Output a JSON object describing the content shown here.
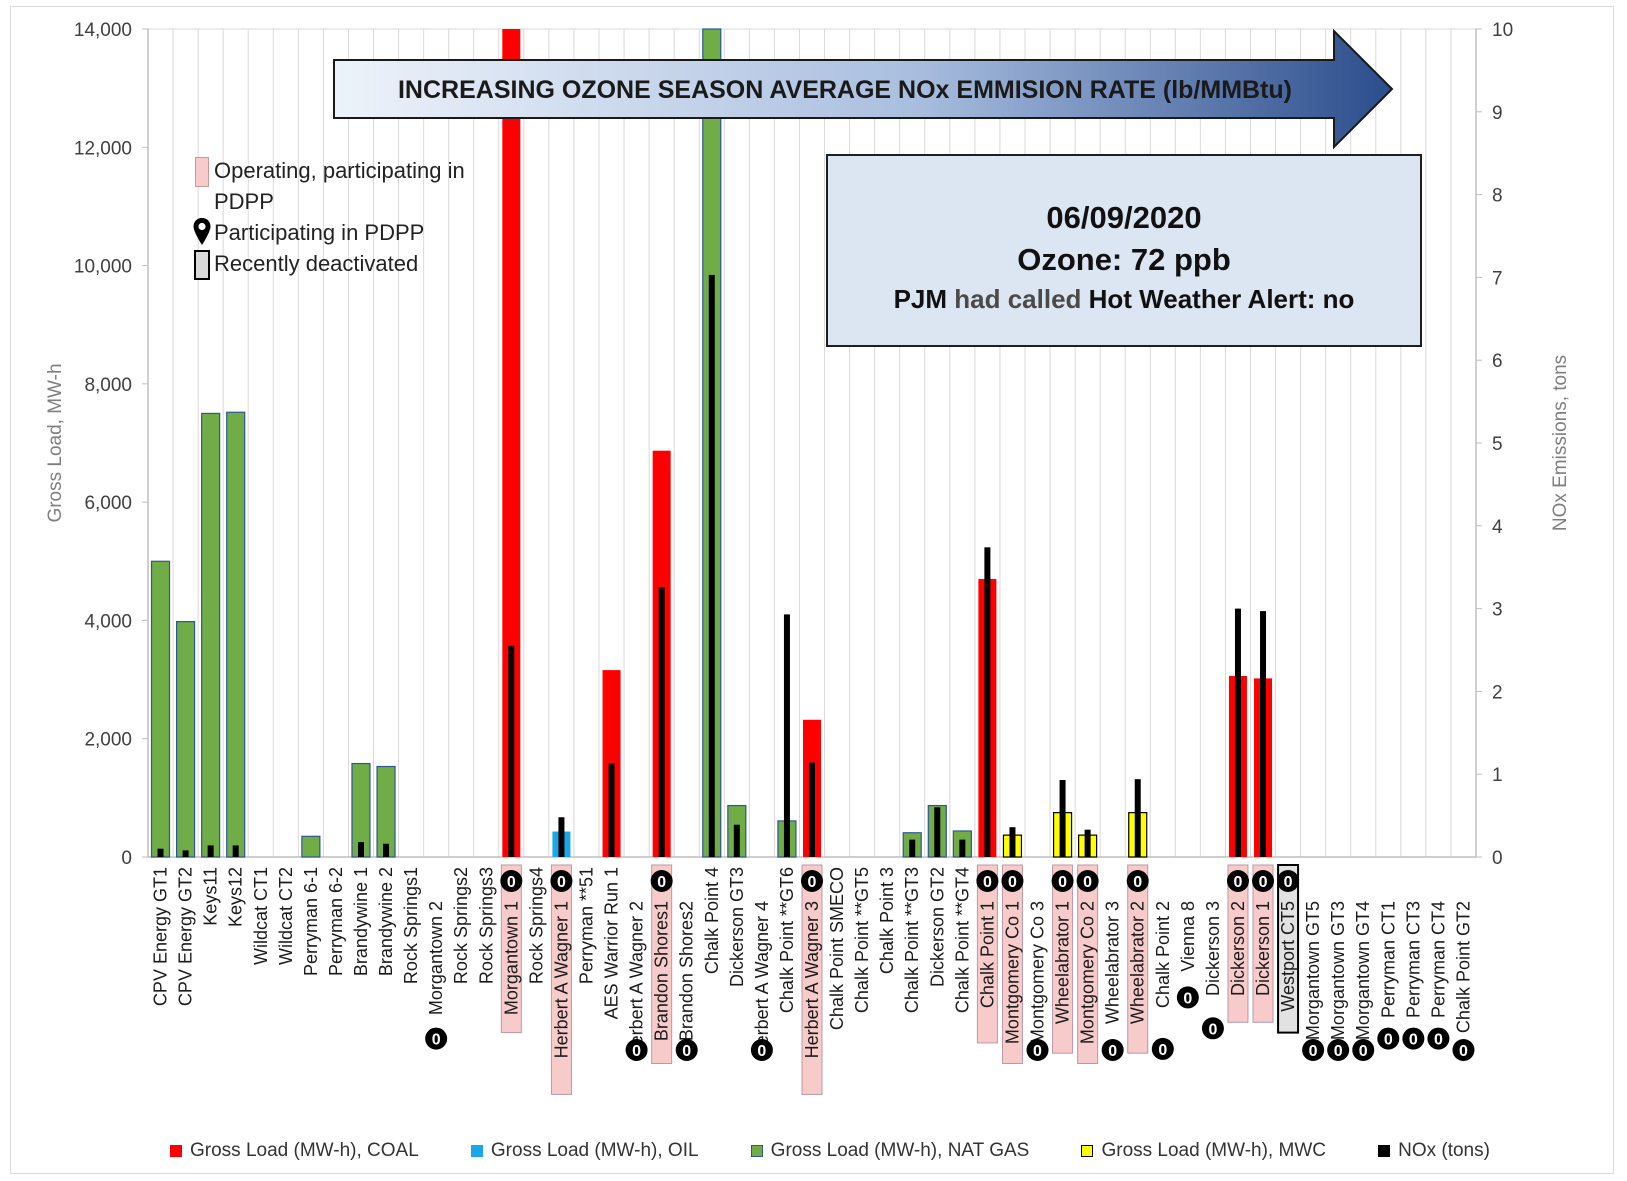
{
  "chart_data": {
    "type": "bar",
    "banner": "INCREASING OZONE SEASON AVERAGE NOx EMMISION RATE (lb/MMBtu)",
    "ylabel": "Gross Load, MW-h",
    "y2label": "NOx Emissions, tons",
    "ylim": [
      0,
      14000
    ],
    "y2lim": [
      0,
      10
    ],
    "yticks": [
      "0",
      "2,000",
      "4,000",
      "6,000",
      "8,000",
      "10,000",
      "12,000",
      "14,000"
    ],
    "y2ticks": [
      "0",
      "1",
      "2",
      "3",
      "4",
      "5",
      "6",
      "7",
      "8",
      "9",
      "10"
    ],
    "grid": true,
    "legend_position": "bottom",
    "categories": [
      "CPV Energy GT1",
      "CPV Energy GT2",
      "Keys11",
      "Keys12",
      "Wildcat CT1",
      "Wildcat CT2",
      "Perryman 6-1",
      "Perryman 6-2",
      "Brandywine 1",
      "Brandywine 2",
      "Rock Springs1",
      "Morgantown 2",
      "Rock Springs2",
      "Rock Springs3",
      "Morgantown 1",
      "Rock Springs4",
      "Herbert A Wagner 1",
      "Perryman **51",
      "AES Warrior Run 1",
      "Herbert A Wagner 2",
      "Brandon Shores1",
      "Brandon Shores2",
      "Chalk Point 4",
      "Dickerson GT3",
      "Herbert A Wagner 4",
      "Chalk Point **GT6",
      "Herbert A Wagner 3",
      "Chalk Point SMECO",
      "Chalk Point **GT5",
      "Chalk Point 3",
      "Chalk Point **GT3",
      "Dickerson GT2",
      "Chalk Point **GT4",
      "Chalk Point 1",
      "Montgomery Co 1",
      "Montgomery Co 3",
      "Wheelabrator 1",
      "Montgomery Co 2",
      "Wheelabrator 3",
      "Wheelabrator 2",
      "Chalk Point 2",
      "Vienna 8",
      "Dickerson 3",
      "Dickerson 2",
      "Dickerson 1",
      "Westport CT5",
      "Morgantown GT5",
      "Morgantown GT3",
      "Morgantown GT4",
      "Perryman CT1",
      "Perryman CT3",
      "Perryman CT4",
      "Chalk Point GT2"
    ],
    "fuel": [
      "gas",
      "gas",
      "gas",
      "gas",
      "gas",
      "gas",
      "gas",
      "gas",
      "gas",
      "gas",
      "gas",
      "coal",
      "gas",
      "gas",
      "coal",
      "gas",
      "oil",
      "oil",
      "coal",
      "oil",
      "coal",
      "coal",
      "gas",
      "gas",
      "oil",
      "gas",
      "coal",
      "gas",
      "gas",
      "gas",
      "gas",
      "gas",
      "gas",
      "coal",
      "mwc",
      "mwc",
      "mwc",
      "mwc",
      "mwc",
      "mwc",
      "coal",
      "oil",
      "coal",
      "coal",
      "coal",
      "oil",
      "gas",
      "gas",
      "gas",
      "gas",
      "gas",
      "gas",
      "gas"
    ],
    "series": [
      {
        "name": "Gross Load (MW-h), COAL",
        "color": "#ff0000",
        "fuel": "coal",
        "axis": "left"
      },
      {
        "name": "Gross Load (MW-h), OIL",
        "color": "#1aa7e8",
        "fuel": "oil",
        "axis": "left"
      },
      {
        "name": "Gross Load (MW-h), NAT GAS",
        "color": "#70ad47",
        "fuel": "gas",
        "axis": "left"
      },
      {
        "name": "Gross Load (MW-h), MWC",
        "color": "#ffff00",
        "fuel": "mwc",
        "axis": "left"
      },
      {
        "name": "NOx (tons)",
        "color": "#000000",
        "axis": "right"
      }
    ],
    "gross_load": [
      5000,
      3980,
      7500,
      7520,
      0,
      0,
      350,
      0,
      1580,
      1530,
      0,
      0,
      0,
      0,
      14000,
      0,
      430,
      0,
      3160,
      0,
      6870,
      0,
      14000,
      870,
      0,
      610,
      2320,
      0,
      0,
      0,
      410,
      870,
      440,
      4700,
      370,
      0,
      750,
      370,
      0,
      750,
      0,
      0,
      0,
      3060,
      3020,
      0,
      0,
      0,
      0,
      0,
      0,
      0,
      0
    ],
    "nox": [
      0.1,
      0.08,
      0.14,
      0.14,
      0,
      0,
      0,
      0,
      0.18,
      0.16,
      0,
      0,
      0,
      0,
      2.55,
      0,
      0.48,
      0,
      1.13,
      0,
      3.26,
      0,
      7.03,
      0.39,
      0,
      2.93,
      1.14,
      0,
      0,
      0,
      0.21,
      0.6,
      0.21,
      3.74,
      0.36,
      0,
      0.93,
      0.33,
      0,
      0.94,
      0,
      0,
      0,
      3.0,
      2.97,
      0,
      0,
      0,
      0,
      0,
      0,
      0,
      0
    ],
    "participating_pdpp": [
      false,
      false,
      false,
      false,
      false,
      false,
      false,
      false,
      false,
      false,
      false,
      false,
      false,
      false,
      true,
      false,
      true,
      false,
      false,
      false,
      true,
      false,
      false,
      false,
      false,
      false,
      true,
      false,
      false,
      false,
      false,
      false,
      false,
      true,
      true,
      false,
      true,
      true,
      false,
      true,
      false,
      false,
      false,
      true,
      true,
      false,
      false,
      false,
      false,
      false,
      false,
      false,
      false
    ],
    "recently_deactivated": [
      false,
      false,
      false,
      false,
      false,
      false,
      false,
      false,
      false,
      false,
      false,
      false,
      false,
      false,
      false,
      false,
      false,
      false,
      false,
      false,
      false,
      false,
      false,
      false,
      false,
      false,
      false,
      false,
      false,
      false,
      false,
      false,
      false,
      false,
      false,
      false,
      false,
      false,
      false,
      false,
      false,
      false,
      false,
      false,
      false,
      true,
      false,
      false,
      false,
      false,
      false,
      false,
      false
    ],
    "zero_marks": [
      false,
      false,
      false,
      false,
      false,
      false,
      false,
      false,
      false,
      false,
      false,
      true,
      false,
      false,
      true,
      false,
      true,
      false,
      false,
      true,
      true,
      true,
      false,
      false,
      true,
      false,
      true,
      false,
      false,
      false,
      false,
      false,
      false,
      true,
      true,
      true,
      true,
      true,
      true,
      true,
      true,
      true,
      true,
      true,
      true,
      true,
      true,
      true,
      true,
      true,
      true,
      true,
      true
    ],
    "zero_label": "0"
  },
  "legend": {
    "operating_pdpp": "Operating, participating in PDPP",
    "participating_pdpp": "Participating in PDPP",
    "recently_deactivated": "Recently deactivated"
  },
  "info": {
    "date": "06/09/2020",
    "ozone": "Ozone: 72 ppb",
    "hot_weather_prefix": "PJM ",
    "hot_weather_mid": "had called",
    "hot_weather_suffix": " Hot Weather Alert: no"
  }
}
